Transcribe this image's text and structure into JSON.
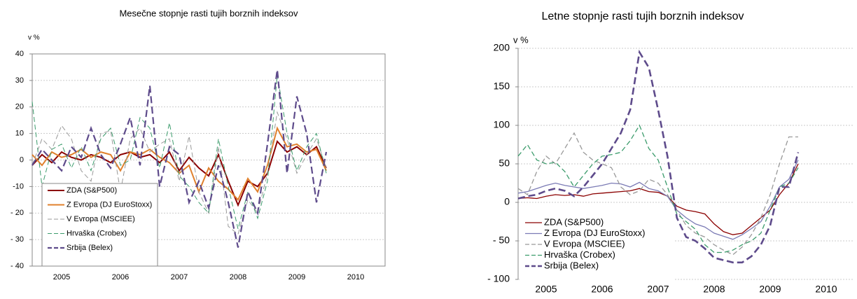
{
  "chart_data": [
    {
      "type": "line",
      "title": "Mesečne stopnje rasti tujih borznih indeksov",
      "y_label": "v %",
      "categories": [
        null,
        null,
        null,
        "2005",
        null,
        null,
        null,
        null,
        null,
        "2006",
        null,
        null,
        null,
        null,
        null,
        "2007",
        null,
        null,
        null,
        null,
        null,
        "2008",
        null,
        null,
        null,
        null,
        null,
        "2009",
        null,
        null,
        null,
        null,
        null,
        "2010",
        null,
        null
      ],
      "ylim": [
        -40,
        40
      ],
      "yticks": [
        {
          "value": -40,
          "label": "- 40"
        },
        {
          "value": -30,
          "label": "- 30"
        },
        {
          "value": -20,
          "label": "- 20"
        },
        -10,
        0,
        10,
        20,
        30,
        40
      ],
      "grid": true,
      "series": [
        {
          "name": "ZDA (S&P500)",
          "color": "#8b0000",
          "line_style": "solid",
          "values": [
            -2,
            2,
            -1,
            3,
            1,
            0,
            2,
            1,
            -1,
            2,
            3,
            1,
            2,
            -1,
            3,
            -4,
            1,
            -3,
            -6,
            2,
            -8,
            -17,
            -8,
            -10,
            -5,
            7,
            3,
            5,
            2,
            5,
            -3,
            null,
            null,
            null,
            null,
            null
          ]
        },
        {
          "name": "Z Evropa (DJ EuroStoxx)",
          "color": "#e0812d",
          "line_style": "solid",
          "values": [
            2,
            -2,
            3,
            1,
            2,
            4,
            1,
            3,
            2,
            -4,
            3,
            2,
            4,
            1,
            -1,
            -5,
            -2,
            -12,
            -3,
            -8,
            -11,
            -15,
            -7,
            -12,
            -2,
            12,
            5,
            6,
            3,
            4,
            -4,
            null,
            null,
            null,
            null,
            null
          ]
        },
        {
          "name": "V Evropa (MSCIEE)",
          "color": "#999999",
          "line_style": "dashed",
          "values": [
            -2,
            8,
            4,
            13,
            8,
            -4,
            -8,
            10,
            11,
            -12,
            8,
            12,
            3,
            6,
            8,
            -8,
            9,
            -12,
            -20,
            5,
            -25,
            -28,
            -15,
            -20,
            -5,
            18,
            8,
            -5,
            2,
            8,
            -3,
            null,
            null,
            null,
            null,
            null
          ]
        },
        {
          "name": "Hrvaška (Crobex)",
          "color": "#3c9c6c",
          "line_style": "dashed",
          "values": [
            22,
            -10,
            4,
            6,
            -3,
            5,
            -4,
            8,
            12,
            -2,
            0,
            16,
            12,
            -3,
            14,
            -6,
            -10,
            -16,
            -20,
            8,
            -10,
            -26,
            -12,
            -22,
            -8,
            32,
            10,
            -4,
            5,
            10,
            -5,
            null,
            null,
            null,
            null,
            null
          ]
        },
        {
          "name": "Srbija (Belex)",
          "color": "#5e4b8b",
          "line_style": "dashed",
          "values": [
            -2,
            4,
            0,
            -4,
            5,
            1,
            12,
            2,
            -3,
            6,
            16,
            -2,
            28,
            -10,
            5,
            2,
            -16,
            -8,
            -18,
            -2,
            -16,
            -33,
            -12,
            -20,
            6,
            34,
            -5,
            24,
            10,
            -16,
            3,
            null,
            null,
            null,
            null,
            null
          ]
        }
      ]
    },
    {
      "type": "line",
      "title": "Letne stopnje rasti tujih borznih indeksov",
      "y_label": "v %",
      "categories": [
        null,
        null,
        null,
        "2005",
        null,
        null,
        null,
        null,
        null,
        "2006",
        null,
        null,
        null,
        null,
        null,
        "2007",
        null,
        null,
        null,
        null,
        null,
        "2008",
        null,
        null,
        null,
        null,
        null,
        "2009",
        null,
        null,
        null,
        null,
        null,
        "2010",
        null,
        null
      ],
      "ylim": [
        -100,
        200
      ],
      "yticks": [
        {
          "value": -100,
          "label": "- 100"
        },
        {
          "value": -50,
          "label": "- 50"
        },
        0,
        50,
        100,
        150,
        200
      ],
      "grid": true,
      "series": [
        {
          "name": "ZDA (S&P500)",
          "color": "#8b0000",
          "line_style": "solid",
          "values": [
            5,
            6,
            5,
            8,
            10,
            9,
            10,
            8,
            11,
            12,
            13,
            14,
            15,
            18,
            14,
            13,
            8,
            -5,
            -10,
            -12,
            -15,
            -28,
            -38,
            -42,
            -40,
            -30,
            -20,
            -10,
            10,
            25,
            50,
            null,
            null,
            null,
            null,
            null
          ]
        },
        {
          "name": "Z Evropa (DJ EuroStoxx)",
          "color": "#7b7bb5",
          "line_style": "solid",
          "values": [
            12,
            14,
            18,
            22,
            25,
            22,
            20,
            18,
            20,
            22,
            25,
            24,
            20,
            26,
            18,
            15,
            8,
            -10,
            -20,
            -28,
            -32,
            -40,
            -44,
            -48,
            -42,
            -34,
            -25,
            -5,
            20,
            30,
            55,
            null,
            null,
            null,
            null,
            null
          ]
        },
        {
          "name": "V Evropa (MSCIEE)",
          "color": "#999999",
          "line_style": "dashed",
          "values": [
            18,
            10,
            40,
            60,
            50,
            70,
            90,
            65,
            55,
            50,
            45,
            20,
            10,
            15,
            30,
            25,
            10,
            -10,
            -30,
            -40,
            -45,
            -55,
            -62,
            -68,
            -58,
            -42,
            -20,
            10,
            50,
            85,
            85,
            null,
            null,
            null,
            null,
            null
          ]
        },
        {
          "name": "Hrvaška (Crobex)",
          "color": "#3c9c6c",
          "line_style": "dashed",
          "values": [
            60,
            75,
            55,
            50,
            52,
            40,
            20,
            35,
            50,
            60,
            62,
            65,
            80,
            100,
            70,
            55,
            20,
            -15,
            -25,
            -35,
            -55,
            -65,
            -65,
            -62,
            -55,
            -50,
            -40,
            -10,
            20,
            25,
            45,
            null,
            null,
            null,
            null,
            null
          ]
        },
        {
          "name": "Srbija (Belex)",
          "color": "#5e4b8b",
          "line_style": "dashed",
          "values": [
            5,
            8,
            10,
            15,
            18,
            15,
            8,
            20,
            35,
            50,
            70,
            90,
            120,
            195,
            175,
            120,
            60,
            -20,
            -45,
            -50,
            -60,
            -72,
            -75,
            -78,
            -78,
            -70,
            -55,
            -30,
            20,
            20,
            65,
            null,
            null,
            null,
            null,
            null
          ]
        }
      ]
    }
  ]
}
